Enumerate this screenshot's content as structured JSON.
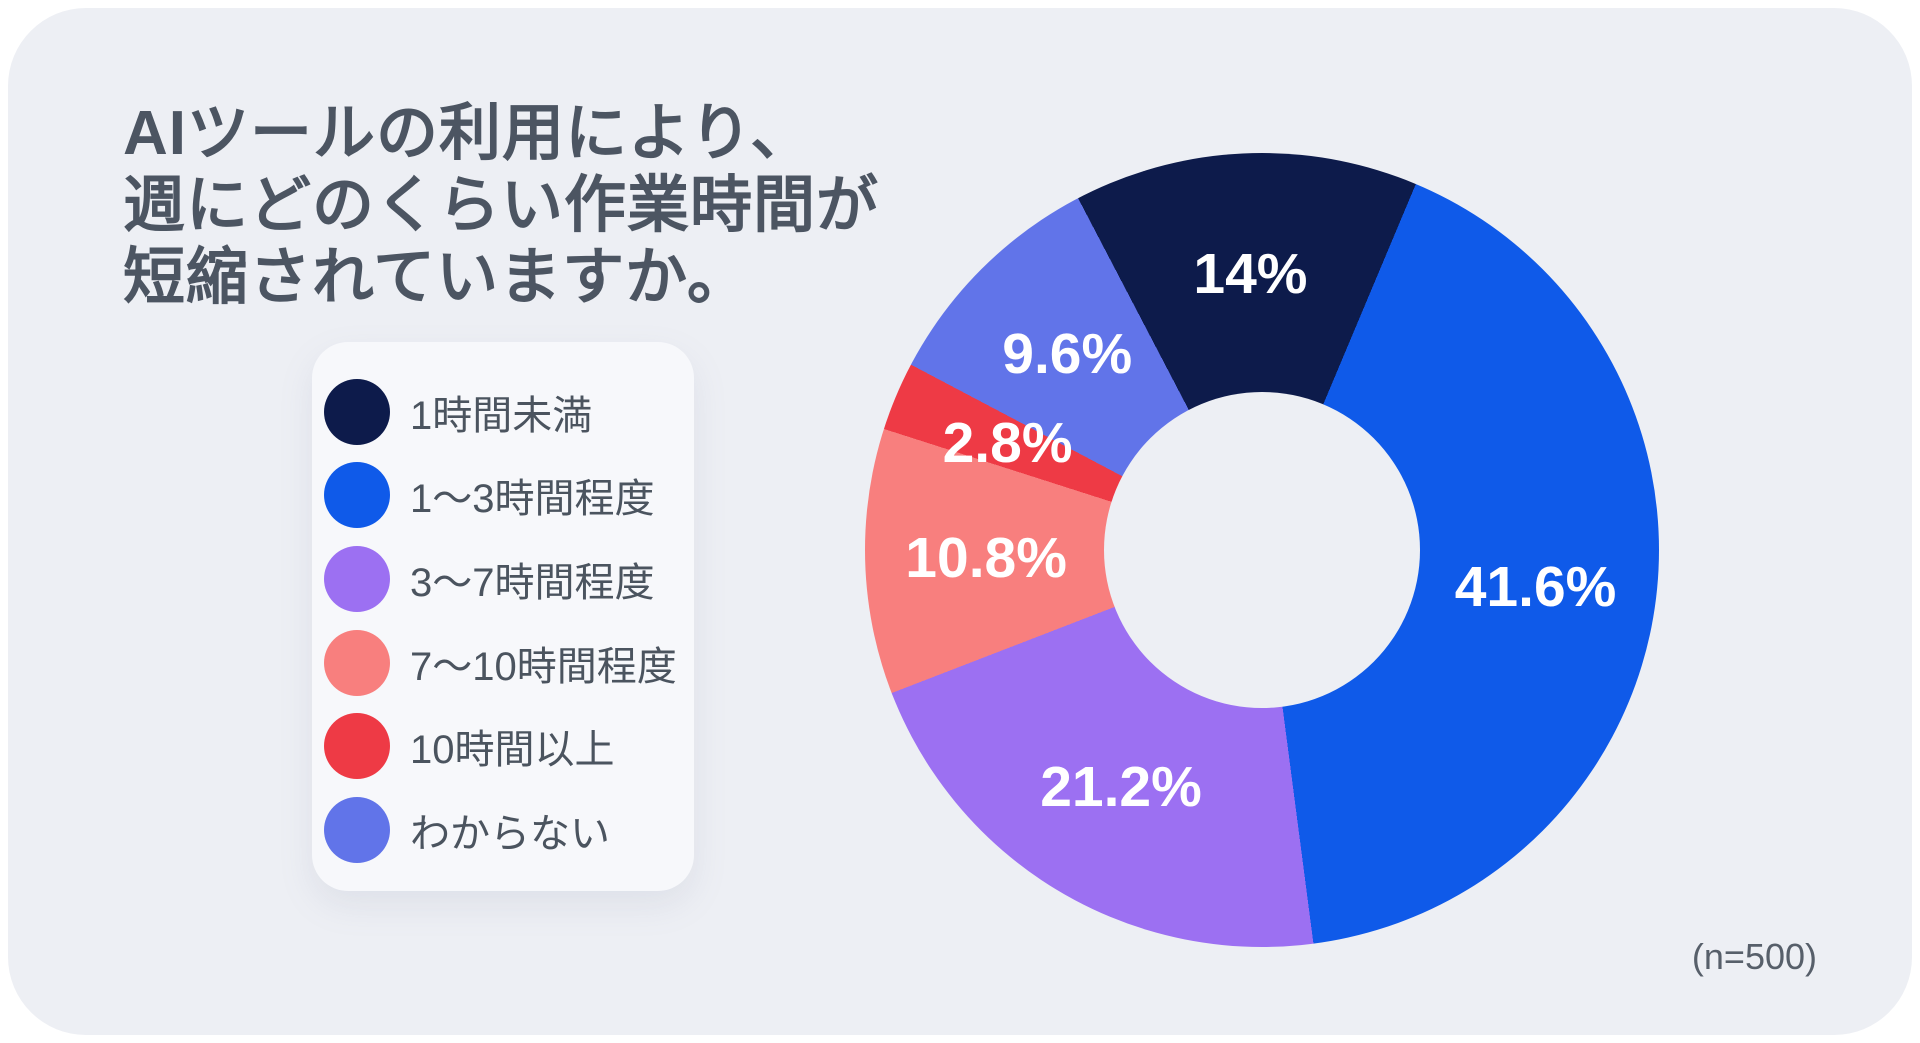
{
  "card": {
    "title_lines": [
      "AIツールの利用により、",
      "週にどのくらい作業時間が",
      "短縮されていますか。"
    ],
    "sample_note": "(n=500)"
  },
  "colors": {
    "page_bg": "#ffffff",
    "card_bg": "#edeff4",
    "legend_bg": "#f7f8fb",
    "title_text": "#4c5562",
    "legend_text": "#4b545f",
    "slice_label_text": "#ffffff",
    "note_text": "#575f6a"
  },
  "chart_data": {
    "type": "pie",
    "donut": true,
    "title": "AIツールの利用により、週にどのくらい作業時間が短縮されていますか。",
    "note": "(n=500)",
    "start_angle_deg": -27.6,
    "direction": "clockwise",
    "inner_radius_ratio": 0.4,
    "legend_position": "left",
    "slices": [
      {
        "label": "1時間未満",
        "value": 14,
        "display": "14%",
        "color": "#0d1b4b"
      },
      {
        "label": "1〜3時間程度",
        "value": 41.6,
        "display": "41.6%",
        "color": "#0f5ae9"
      },
      {
        "label": "3〜7時間程度",
        "value": 21.2,
        "display": "21.2%",
        "color": "#9c70f2"
      },
      {
        "label": "7〜10時間程度",
        "value": 10.8,
        "display": "10.8%",
        "color": "#f87f7e"
      },
      {
        "label": "10時間以上",
        "value": 2.8,
        "display": "2.8%",
        "color": "#ee3a45"
      },
      {
        "label": "わからない",
        "value": 9.6,
        "display": "9.6%",
        "color": "#6174e9"
      }
    ]
  }
}
